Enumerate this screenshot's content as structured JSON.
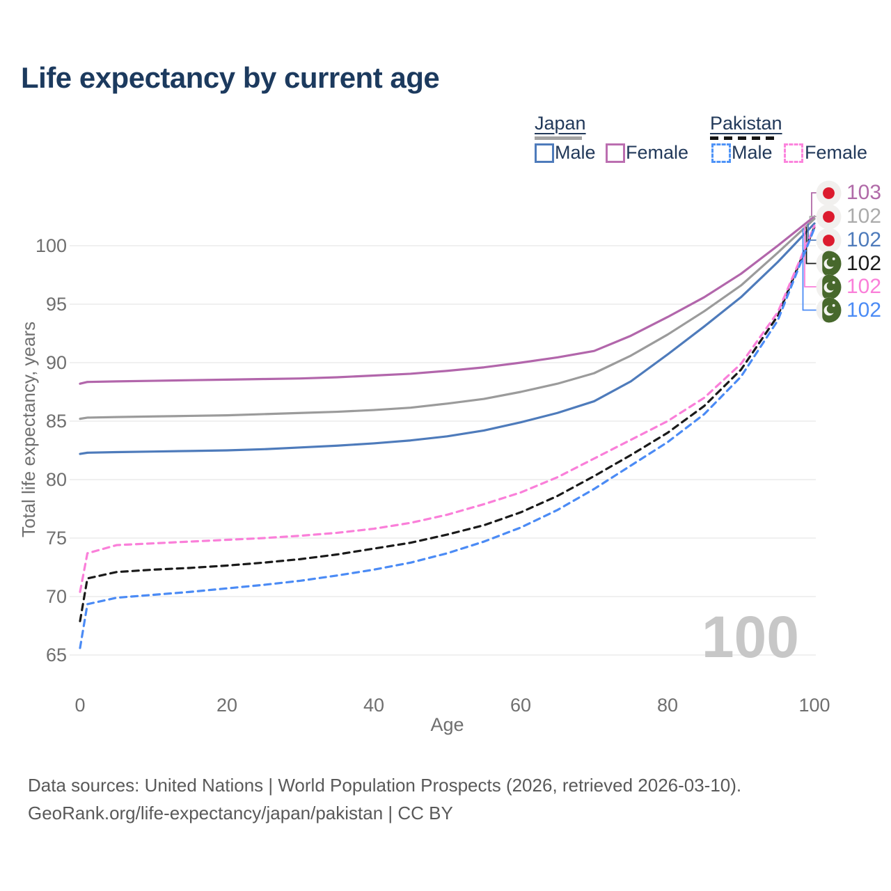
{
  "header": {
    "title": "Life expectancy by current age"
  },
  "legend": {
    "groups": [
      {
        "label": "Japan",
        "line_style": "solid",
        "bar_color": "#a3a3a3",
        "items": [
          {
            "label": "Male",
            "color": "#4e7bbb"
          },
          {
            "label": "Female",
            "color": "#bb6eb0"
          }
        ]
      },
      {
        "label": "Pakistan",
        "line_style": "dashed",
        "bar_color": "#151515",
        "items": [
          {
            "label": "Male",
            "color": "#4e93f7"
          },
          {
            "label": "Female",
            "color": "#fc84dd"
          }
        ]
      }
    ]
  },
  "chart_data": {
    "type": "line",
    "title": "Life expectancy by current age",
    "xlabel": "Age",
    "ylabel": "Total life expectancy, years",
    "x_ticks": [
      0,
      20,
      40,
      60,
      80,
      100
    ],
    "y_ticks": [
      65,
      70,
      75,
      80,
      85,
      90,
      95,
      100
    ],
    "xlim": [
      0,
      100
    ],
    "ylim": [
      65,
      103
    ],
    "grid": "horizontal-only",
    "legend_position": "top-right",
    "watermark": "100",
    "x": [
      0,
      1,
      5,
      10,
      15,
      20,
      25,
      30,
      35,
      40,
      45,
      50,
      55,
      60,
      65,
      70,
      75,
      80,
      85,
      90,
      95,
      100
    ],
    "series": [
      {
        "name": "Japan Female",
        "country": "Japan",
        "sex": "Female",
        "color": "#b266ab",
        "dash": "solid",
        "label_color": "#b06aa8",
        "flag": "japan-flag-icon",
        "end_label": {
          "value": "103"
        },
        "values": [
          88.2,
          88.35,
          88.4,
          88.45,
          88.5,
          88.55,
          88.6,
          88.65,
          88.75,
          88.9,
          89.05,
          89.3,
          89.6,
          90.0,
          90.45,
          91.0,
          92.3,
          93.9,
          95.6,
          97.6,
          100.0,
          102.5
        ]
      },
      {
        "name": "Japan Both sexes",
        "country": "Japan",
        "sex": "Both",
        "color": "#9b9b9b",
        "dash": "solid",
        "label_color": "#ababab",
        "flag": "japan-flag-icon",
        "end_label": {
          "value": "102"
        },
        "values": [
          85.2,
          85.3,
          85.35,
          85.4,
          85.45,
          85.5,
          85.6,
          85.7,
          85.8,
          85.95,
          86.15,
          86.5,
          86.9,
          87.5,
          88.2,
          89.1,
          90.6,
          92.4,
          94.4,
          96.6,
          99.4,
          102.3
        ]
      },
      {
        "name": "Japan Male",
        "country": "Japan",
        "sex": "Male",
        "color": "#4e7bbb",
        "dash": "solid",
        "label_color": "#4e7bbb",
        "flag": "japan-flag-icon",
        "end_label": {
          "value": "102"
        },
        "values": [
          82.2,
          82.3,
          82.35,
          82.4,
          82.45,
          82.5,
          82.6,
          82.75,
          82.9,
          83.1,
          83.35,
          83.7,
          84.2,
          84.9,
          85.7,
          86.7,
          88.4,
          90.7,
          93.1,
          95.6,
          98.6,
          101.9
        ]
      },
      {
        "name": "Pakistan Both sexes",
        "country": "Pakistan",
        "sex": "Both",
        "color": "#1a1a1a",
        "dash": "dashed",
        "label_color": "#1a1a1a",
        "flag": "pakistan-flag-icon",
        "end_label": {
          "value": "102"
        },
        "values": [
          67.9,
          71.55,
          72.1,
          72.3,
          72.45,
          72.65,
          72.9,
          73.2,
          73.6,
          74.1,
          74.6,
          75.3,
          76.1,
          77.2,
          78.6,
          80.3,
          82.1,
          84.0,
          86.3,
          89.4,
          94.0,
          101.6
        ]
      },
      {
        "name": "Pakistan Female",
        "country": "Pakistan",
        "sex": "Female",
        "color": "#fa7fd9",
        "dash": "dashed",
        "label_color": "#fa7fd9",
        "flag": "pakistan-flag-icon",
        "end_label": {
          "value": "102"
        },
        "values": [
          70.4,
          73.7,
          74.4,
          74.55,
          74.7,
          74.85,
          75.0,
          75.2,
          75.45,
          75.8,
          76.3,
          77.0,
          77.9,
          78.9,
          80.2,
          81.8,
          83.4,
          85.0,
          87.0,
          89.9,
          94.3,
          101.7
        ]
      },
      {
        "name": "Pakistan Male",
        "country": "Pakistan",
        "sex": "Male",
        "color": "#4b8bf5",
        "dash": "dashed",
        "label_color": "#4b8bf5",
        "flag": "pakistan-flag-icon",
        "end_label": {
          "value": "102"
        },
        "values": [
          65.6,
          69.35,
          69.9,
          70.15,
          70.4,
          70.7,
          71.0,
          71.35,
          71.8,
          72.3,
          72.9,
          73.7,
          74.7,
          75.9,
          77.4,
          79.2,
          81.2,
          83.2,
          85.6,
          88.8,
          93.6,
          101.5
        ]
      }
    ]
  },
  "footer": {
    "line1": "Data sources: United Nations | World Population Prospects (2026, retrieved 2026-03-10).",
    "line2": "GeoRank.org/life-expectancy/japan/pakistan | CC BY"
  }
}
